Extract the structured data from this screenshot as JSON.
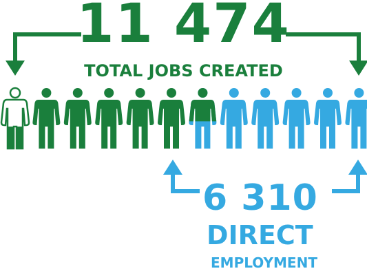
{
  "colors": {
    "green": "#1a7f3c",
    "blue": "#35a9e1",
    "background": "#ffffff"
  },
  "total": {
    "number": "11 474",
    "caption": "TOTAL JOBS CREATED"
  },
  "direct": {
    "number": "6 310",
    "line1": "DIRECT",
    "line2": "EMPLOYMENT"
  },
  "icons": {
    "count": 12,
    "outlined_first": true,
    "green_full": 5,
    "green_fraction_of_sixth": 0.55,
    "icon_name": "person-icon"
  }
}
